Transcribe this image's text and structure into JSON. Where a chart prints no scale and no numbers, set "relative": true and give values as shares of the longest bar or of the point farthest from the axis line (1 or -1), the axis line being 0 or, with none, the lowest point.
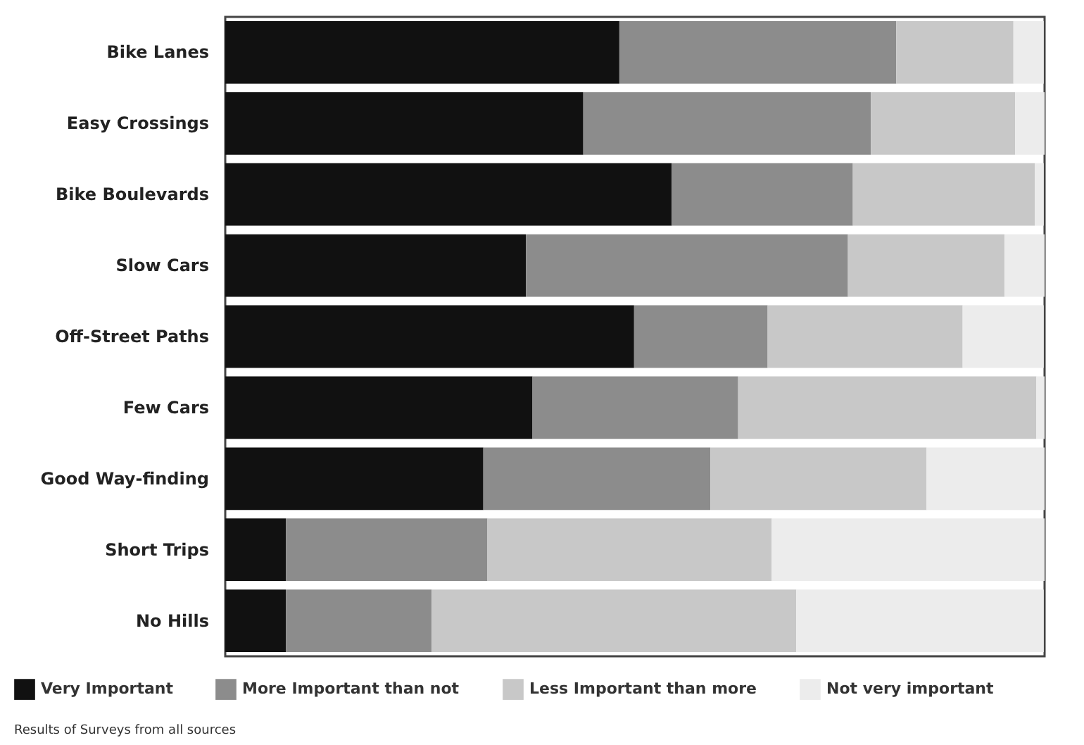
{
  "chart_data": {
    "type": "bar",
    "orientation": "horizontal",
    "stacked": true,
    "relative": true,
    "categories": [
      "Bike Lanes",
      "Easy Crossings",
      "Bike Boulevards",
      "Slow Cars",
      "Off-Street Paths",
      "Few Cars",
      "Good Way-finding",
      "Short Trips",
      "No Hills"
    ],
    "series": [
      {
        "name": "Very Important",
        "color": "#111111",
        "values": [
          0.481,
          0.437,
          0.545,
          0.367,
          0.499,
          0.375,
          0.315,
          0.074,
          0.074
        ]
      },
      {
        "name": "More Important than not",
        "color": "#8c8c8c",
        "values": [
          0.338,
          0.351,
          0.221,
          0.393,
          0.163,
          0.251,
          0.277,
          0.246,
          0.178
        ]
      },
      {
        "name": "Less Important than more",
        "color": "#c8c8c8",
        "values": [
          0.143,
          0.176,
          0.222,
          0.191,
          0.238,
          0.364,
          0.264,
          0.347,
          0.445
        ]
      },
      {
        "name": "Not very important",
        "color": "#ececec",
        "values": [
          0.037,
          0.036,
          0.011,
          0.049,
          0.099,
          0.01,
          0.144,
          0.333,
          0.302
        ]
      }
    ],
    "legend": "bottom",
    "annotations": [
      "Results of Surveys from all sources"
    ]
  }
}
